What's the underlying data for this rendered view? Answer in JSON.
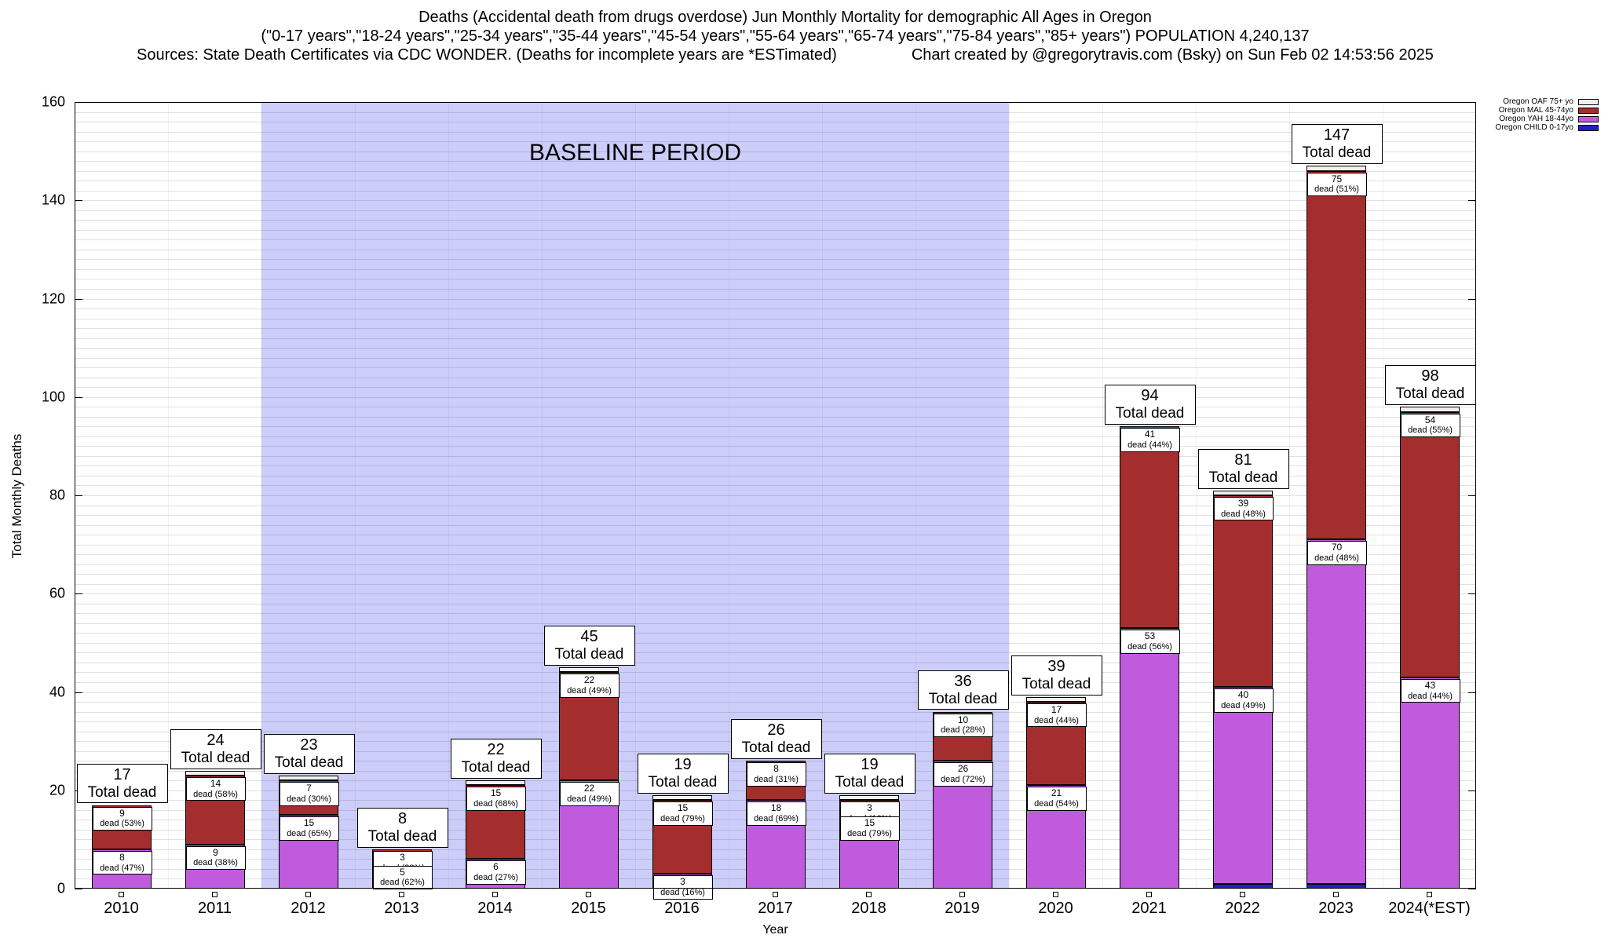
{
  "title": {
    "line1": "Deaths (Accidental death from drugs overdose) Jun Monthly Mortality for demographic All Ages in Oregon",
    "line2": "(\"0-17 years\",\"18-24 years\",\"25-34 years\",\"35-44 years\",\"45-54 years\",\"55-64 years\",\"65-74 years\",\"75-84 years\",\"85+ years\") POPULATION 4,240,137",
    "line3_left": "Sources: State Death Certificates via CDC WONDER. (Deaths for incomplete years are *ESTimated)",
    "line3_right": "Chart created by @gregorytravis.com (Bsky) on Sun Feb 02 14:53:56 2025"
  },
  "chart_data": {
    "type": "bar",
    "stacked": true,
    "xlabel": "Year",
    "ylabel": "Total Monthly Deaths",
    "ylim": [
      0,
      160
    ],
    "ytick_step": 20,
    "grid_step": 2,
    "legend_position": "top-right",
    "categories": [
      "2010",
      "2011",
      "2012",
      "2013",
      "2014",
      "2015",
      "2016",
      "2017",
      "2018",
      "2019",
      "2020",
      "2021",
      "2022",
      "2023",
      "2024(*EST)"
    ],
    "series": [
      {
        "key": "CHILD",
        "name": "Oregon CHILD 0-17yo",
        "color": "#1F1FC8",
        "values": [
          0,
          0,
          0,
          0,
          0,
          0,
          0,
          0,
          0,
          0,
          0,
          0,
          1,
          1,
          0
        ]
      },
      {
        "key": "YAH",
        "name": "Oregon YAH 18-44yo",
        "color": "#C05BDD",
        "values": [
          8,
          9,
          15,
          5,
          6,
          22,
          3,
          18,
          15,
          26,
          21,
          53,
          40,
          70,
          43
        ]
      },
      {
        "key": "MAL",
        "name": "Oregon MAL 45-74yo",
        "color": "#A42D2D",
        "values": [
          9,
          14,
          7,
          3,
          15,
          22,
          15,
          8,
          3,
          10,
          17,
          41,
          39,
          75,
          54
        ]
      },
      {
        "key": "OAF",
        "name": "Oregon OAF 75+ yo",
        "color": "#EFEFEF",
        "values": [
          0,
          1,
          1,
          0,
          1,
          1,
          1,
          0,
          1,
          0,
          1,
          0,
          1,
          1,
          1
        ]
      }
    ],
    "totals": [
      17,
      24,
      23,
      8,
      22,
      45,
      19,
      26,
      19,
      36,
      39,
      94,
      81,
      147,
      98
    ],
    "total_caption": "Total dead",
    "baseline": {
      "label": "BASELINE PERIOD",
      "start_index": 2,
      "end_index": 9,
      "color": "#CDCDFA"
    },
    "annotations": [
      {
        "category": "2010",
        "total": "17",
        "labels": [
          {
            "series": "MAL",
            "value": "9",
            "pct": "dead (53%)"
          },
          {
            "series": "YAH",
            "value": "8",
            "pct": "dead (47%)"
          }
        ]
      },
      {
        "category": "2011",
        "total": "24",
        "labels": [
          {
            "series": "MAL",
            "value": "14",
            "pct": "dead (58%)"
          },
          {
            "series": "YAH",
            "value": "9",
            "pct": "dead (38%)"
          }
        ]
      },
      {
        "category": "2012",
        "total": "23",
        "labels": [
          {
            "series": "MAL",
            "value": "7",
            "pct": "dead (30%)"
          },
          {
            "series": "YAH",
            "value": "15",
            "pct": "dead (65%)"
          }
        ]
      },
      {
        "category": "2013",
        "total": "8",
        "labels": [
          {
            "series": "MAL",
            "value": "3",
            "pct": "dead (38%)"
          },
          {
            "series": "YAH",
            "value": "5",
            "pct": "dead (62%)"
          }
        ]
      },
      {
        "category": "2014",
        "total": "22",
        "labels": [
          {
            "series": "MAL",
            "value": "15",
            "pct": "dead (68%)"
          },
          {
            "series": "YAH",
            "value": "6",
            "pct": "dead (27%)"
          }
        ]
      },
      {
        "category": "2015",
        "total": "45",
        "labels": [
          {
            "series": "MAL",
            "value": "22",
            "pct": "dead (49%)"
          },
          {
            "series": "YAH",
            "value": "22",
            "pct": "dead (49%)"
          }
        ]
      },
      {
        "category": "2016",
        "total": "19",
        "labels": [
          {
            "series": "MAL",
            "value": "15",
            "pct": "dead (79%)"
          },
          {
            "series": "YAH",
            "value": "3",
            "pct": "dead (16%)"
          }
        ]
      },
      {
        "category": "2017",
        "total": "26",
        "labels": [
          {
            "series": "MAL",
            "value": "8",
            "pct": "dead (31%)"
          },
          {
            "series": "YAH",
            "value": "18",
            "pct": "dead (69%)"
          }
        ]
      },
      {
        "category": "2018",
        "total": "19",
        "labels": [
          {
            "series": "MAL",
            "value": "3",
            "pct": "dead (16%)"
          },
          {
            "series": "YAH",
            "value": "15",
            "pct": "dead (79%)"
          }
        ]
      },
      {
        "category": "2019",
        "total": "36",
        "labels": [
          {
            "series": "MAL",
            "value": "10",
            "pct": "dead (28%)"
          },
          {
            "series": "YAH",
            "value": "26",
            "pct": "dead (72%)"
          }
        ]
      },
      {
        "category": "2020",
        "total": "39",
        "labels": [
          {
            "series": "MAL",
            "value": "17",
            "pct": "dead (44%)"
          },
          {
            "series": "YAH",
            "value": "21",
            "pct": "dead (54%)"
          }
        ]
      },
      {
        "category": "2021",
        "total": "94",
        "labels": [
          {
            "series": "MAL",
            "value": "41",
            "pct": "dead (44%)"
          },
          {
            "series": "YAH",
            "value": "53",
            "pct": "dead (56%)"
          }
        ]
      },
      {
        "category": "2022",
        "total": "81",
        "labels": [
          {
            "series": "MAL",
            "value": "39",
            "pct": "dead (48%)"
          },
          {
            "series": "YAH",
            "value": "40",
            "pct": "dead (49%)"
          }
        ]
      },
      {
        "category": "2023",
        "total": "147",
        "labels": [
          {
            "series": "MAL",
            "value": "75",
            "pct": "dead (51%)"
          },
          {
            "series": "YAH",
            "value": "70",
            "pct": "dead (48%)"
          }
        ]
      },
      {
        "category": "2024(*EST)",
        "total": "98",
        "labels": [
          {
            "series": "MAL",
            "value": "54",
            "pct": "dead (55%)"
          },
          {
            "series": "YAH",
            "value": "43",
            "pct": "dead (44%)"
          }
        ]
      }
    ]
  }
}
